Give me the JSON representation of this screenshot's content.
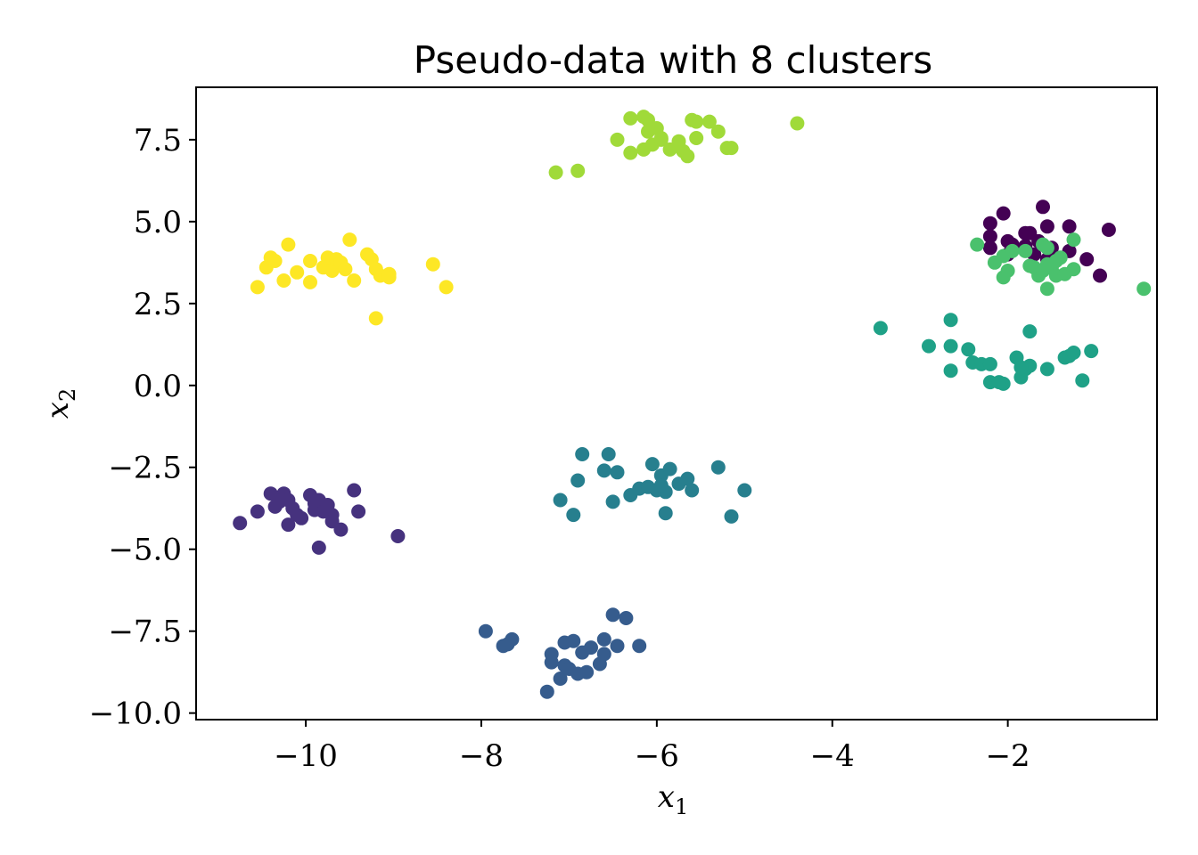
{
  "chart_data": {
    "type": "scatter",
    "title": "Pseudo-data with 8 clusters",
    "xlabel": "x",
    "xlabel_sub": "1",
    "ylabel": "x",
    "ylabel_sub": "2",
    "xlim": [
      -11.25,
      -0.3
    ],
    "ylim": [
      -10.2,
      9.1
    ],
    "xticks": [
      -10,
      -8,
      -6,
      -4,
      -2
    ],
    "xtick_labels": [
      "−10",
      "−8",
      "−6",
      "−4",
      "−2"
    ],
    "yticks": [
      -10,
      -7.5,
      -5,
      -2.5,
      0,
      2.5,
      5,
      7.5
    ],
    "ytick_labels": [
      "−10.0",
      "−7.5",
      "−5.0",
      "−2.5",
      "0.0",
      "2.5",
      "5.0",
      "7.5"
    ],
    "grid": false,
    "legend": "none",
    "series": [
      {
        "color": "#440154",
        "points": [
          [
            -2.2,
            4.95
          ],
          [
            -2.2,
            4.55
          ],
          [
            -2.2,
            4.2
          ],
          [
            -2.05,
            5.25
          ],
          [
            -2.0,
            4.4
          ],
          [
            -2.0,
            4.0
          ],
          [
            -1.8,
            4.65
          ],
          [
            -1.75,
            4.65
          ],
          [
            -1.6,
            5.45
          ],
          [
            -1.55,
            4.85
          ],
          [
            -1.65,
            4.4
          ],
          [
            -1.5,
            4.2
          ],
          [
            -1.8,
            4.25
          ],
          [
            -1.3,
            4.85
          ],
          [
            -1.3,
            4.1
          ],
          [
            -1.1,
            3.85
          ],
          [
            -0.95,
            3.35
          ],
          [
            -0.85,
            4.75
          ],
          [
            -1.95,
            4.3
          ],
          [
            -1.7,
            4.0
          ],
          [
            -1.55,
            3.85
          ]
        ]
      },
      {
        "color": "#46327e",
        "points": [
          [
            -10.75,
            -4.2
          ],
          [
            -10.55,
            -3.85
          ],
          [
            -10.4,
            -3.3
          ],
          [
            -10.35,
            -3.7
          ],
          [
            -10.3,
            -3.55
          ],
          [
            -10.25,
            -3.3
          ],
          [
            -10.2,
            -3.5
          ],
          [
            -10.2,
            -4.25
          ],
          [
            -10.15,
            -3.75
          ],
          [
            -10.1,
            -3.95
          ],
          [
            -10.05,
            -4.05
          ],
          [
            -9.95,
            -3.35
          ],
          [
            -9.9,
            -3.6
          ],
          [
            -9.9,
            -3.8
          ],
          [
            -9.85,
            -3.5
          ],
          [
            -9.8,
            -3.85
          ],
          [
            -9.75,
            -3.65
          ],
          [
            -9.7,
            -3.95
          ],
          [
            -9.7,
            -4.15
          ],
          [
            -9.6,
            -4.4
          ],
          [
            -9.85,
            -4.95
          ],
          [
            -9.45,
            -3.2
          ],
          [
            -9.4,
            -3.85
          ],
          [
            -8.95,
            -4.6
          ]
        ]
      },
      {
        "color": "#365c8d",
        "points": [
          [
            -7.95,
            -7.5
          ],
          [
            -7.75,
            -7.95
          ],
          [
            -7.7,
            -7.9
          ],
          [
            -7.65,
            -7.75
          ],
          [
            -7.25,
            -9.35
          ],
          [
            -7.2,
            -8.2
          ],
          [
            -7.2,
            -8.45
          ],
          [
            -7.1,
            -8.95
          ],
          [
            -7.05,
            -8.55
          ],
          [
            -7.05,
            -7.85
          ],
          [
            -7.0,
            -8.65
          ],
          [
            -6.95,
            -7.8
          ],
          [
            -6.9,
            -8.8
          ],
          [
            -6.85,
            -8.15
          ],
          [
            -6.8,
            -8.75
          ],
          [
            -6.75,
            -8.0
          ],
          [
            -6.65,
            -8.5
          ],
          [
            -6.6,
            -8.2
          ],
          [
            -6.6,
            -7.75
          ],
          [
            -6.5,
            -7.0
          ],
          [
            -6.45,
            -7.95
          ],
          [
            -6.35,
            -7.1
          ],
          [
            -6.2,
            -7.95
          ]
        ]
      },
      {
        "color": "#277f8e",
        "points": [
          [
            -7.1,
            -3.5
          ],
          [
            -6.95,
            -3.95
          ],
          [
            -6.9,
            -2.9
          ],
          [
            -6.85,
            -2.1
          ],
          [
            -6.55,
            -2.1
          ],
          [
            -6.6,
            -2.6
          ],
          [
            -6.5,
            -3.55
          ],
          [
            -6.45,
            -2.65
          ],
          [
            -6.3,
            -3.35
          ],
          [
            -6.2,
            -3.15
          ],
          [
            -6.1,
            -3.1
          ],
          [
            -6.0,
            -3.2
          ],
          [
            -6.05,
            -2.4
          ],
          [
            -5.95,
            -2.75
          ],
          [
            -5.9,
            -3.25
          ],
          [
            -5.9,
            -3.9
          ],
          [
            -5.85,
            -2.55
          ],
          [
            -5.75,
            -3.0
          ],
          [
            -5.65,
            -2.85
          ],
          [
            -5.6,
            -3.2
          ],
          [
            -5.3,
            -2.5
          ],
          [
            -5.15,
            -4.0
          ],
          [
            -5.0,
            -3.2
          ],
          [
            -5.95,
            -3.05
          ]
        ]
      },
      {
        "color": "#1fa187",
        "points": [
          [
            -3.45,
            1.75
          ],
          [
            -2.9,
            1.2
          ],
          [
            -2.65,
            2.0
          ],
          [
            -2.65,
            1.2
          ],
          [
            -2.65,
            0.45
          ],
          [
            -2.45,
            1.1
          ],
          [
            -2.4,
            0.7
          ],
          [
            -2.3,
            0.65
          ],
          [
            -2.2,
            0.65
          ],
          [
            -2.2,
            0.1
          ],
          [
            -2.05,
            0.05
          ],
          [
            -2.1,
            0.1
          ],
          [
            -1.9,
            0.85
          ],
          [
            -1.85,
            0.25
          ],
          [
            -1.8,
            0.5
          ],
          [
            -1.75,
            1.65
          ],
          [
            -1.75,
            0.6
          ],
          [
            -1.55,
            0.5
          ],
          [
            -1.35,
            0.85
          ],
          [
            -1.3,
            0.9
          ],
          [
            -1.25,
            1.0
          ],
          [
            -1.15,
            0.15
          ],
          [
            -1.05,
            1.05
          ],
          [
            -1.85,
            0.55
          ]
        ]
      },
      {
        "color": "#4ac16d",
        "points": [
          [
            -2.35,
            4.3
          ],
          [
            -2.15,
            3.75
          ],
          [
            -2.05,
            3.3
          ],
          [
            -2.0,
            3.5
          ],
          [
            -2.05,
            3.95
          ],
          [
            -1.95,
            4.1
          ],
          [
            -1.75,
            3.65
          ],
          [
            -1.7,
            3.6
          ],
          [
            -1.65,
            3.35
          ],
          [
            -1.6,
            3.5
          ],
          [
            -1.6,
            4.3
          ],
          [
            -1.55,
            4.2
          ],
          [
            -1.55,
            2.95
          ],
          [
            -1.5,
            3.6
          ],
          [
            -1.45,
            3.35
          ],
          [
            -1.4,
            3.9
          ],
          [
            -1.35,
            3.4
          ],
          [
            -1.25,
            3.55
          ],
          [
            -1.25,
            4.45
          ],
          [
            -0.45,
            2.95
          ],
          [
            -1.55,
            3.7
          ],
          [
            -1.8,
            4.1
          ],
          [
            -1.45,
            3.8
          ]
        ]
      },
      {
        "color": "#a0da39",
        "points": [
          [
            -7.15,
            6.5
          ],
          [
            -6.9,
            6.55
          ],
          [
            -6.45,
            7.5
          ],
          [
            -6.3,
            7.1
          ],
          [
            -6.3,
            8.15
          ],
          [
            -6.15,
            8.2
          ],
          [
            -6.1,
            8.1
          ],
          [
            -6.15,
            7.2
          ],
          [
            -6.1,
            7.75
          ],
          [
            -6.05,
            7.35
          ],
          [
            -6.0,
            7.85
          ],
          [
            -5.95,
            7.5
          ],
          [
            -5.95,
            7.55
          ],
          [
            -5.85,
            7.2
          ],
          [
            -5.75,
            7.45
          ],
          [
            -5.7,
            7.15
          ],
          [
            -5.65,
            7.0
          ],
          [
            -5.6,
            8.1
          ],
          [
            -5.55,
            8.05
          ],
          [
            -5.55,
            7.55
          ],
          [
            -5.4,
            8.05
          ],
          [
            -5.3,
            7.75
          ],
          [
            -5.2,
            7.25
          ],
          [
            -5.15,
            7.25
          ],
          [
            -4.4,
            8.0
          ]
        ]
      },
      {
        "color": "#fde725",
        "points": [
          [
            -10.55,
            3.0
          ],
          [
            -10.45,
            3.6
          ],
          [
            -10.4,
            3.9
          ],
          [
            -10.35,
            3.8
          ],
          [
            -10.25,
            3.2
          ],
          [
            -10.2,
            4.3
          ],
          [
            -10.1,
            3.45
          ],
          [
            -9.95,
            3.8
          ],
          [
            -9.95,
            3.15
          ],
          [
            -9.8,
            3.6
          ],
          [
            -9.75,
            3.9
          ],
          [
            -9.7,
            3.5
          ],
          [
            -9.65,
            3.85
          ],
          [
            -9.6,
            3.75
          ],
          [
            -9.55,
            3.55
          ],
          [
            -9.5,
            4.45
          ],
          [
            -9.45,
            3.2
          ],
          [
            -9.3,
            4.0
          ],
          [
            -9.25,
            3.85
          ],
          [
            -9.2,
            3.55
          ],
          [
            -9.15,
            3.35
          ],
          [
            -9.05,
            3.3
          ],
          [
            -9.05,
            3.4
          ],
          [
            -9.2,
            2.05
          ],
          [
            -8.55,
            3.7
          ],
          [
            -8.4,
            3.0
          ]
        ]
      }
    ]
  }
}
